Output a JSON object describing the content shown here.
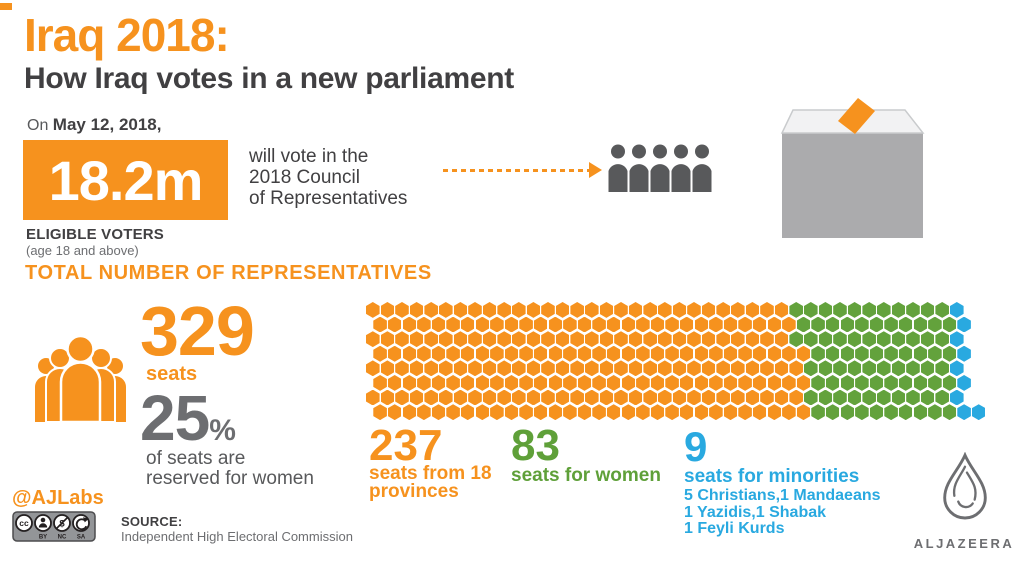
{
  "title": {
    "line1": "Iraq 2018:",
    "line2": "How Iraq votes in a new parliament"
  },
  "voters": {
    "date_prefix": "On",
    "date": "May 12, 2018,",
    "count": "18.2m",
    "description_lines": [
      "will vote in the",
      "2018 Council",
      "of Representatives"
    ],
    "label": "ELIGIBLE VOTERS",
    "sublabel": "(age 18 and above)"
  },
  "representatives": {
    "heading": "TOTAL NUMBER OF REPRESENTATIVES",
    "total": "329",
    "total_label": "seats",
    "women_pct": "25",
    "pct_sign": "%",
    "women_note_lines": [
      "of seats are",
      "reserved for women"
    ]
  },
  "chart_data": {
    "type": "hex-grid",
    "title": "TOTAL NUMBER OF REPRESENTATIVES",
    "total_seats": 329,
    "rows": 8,
    "women_quota_percent": 25,
    "segments": [
      {
        "name": "provinces",
        "value": 237,
        "color": "#F6921E",
        "label_big": "237",
        "label_lines": [
          "seats from 18",
          "provinces"
        ]
      },
      {
        "name": "women",
        "value": 83,
        "color": "#63A23C",
        "label_big": "83",
        "label_lines": [
          "seats for women"
        ]
      },
      {
        "name": "minorities",
        "value": 9,
        "color": "#29A9E0",
        "label_big": "9",
        "label_lines": [
          "seats for minorities"
        ],
        "detail_lines": [
          "5 Christians,1 Mandaeans",
          "1 Yazidis,1 Shabak",
          "1 Feyli Kurds"
        ]
      }
    ]
  },
  "footer": {
    "handle": "@AJLabs",
    "cc_labels": [
      "BY",
      "NC",
      "SA"
    ],
    "source_label": "SOURCE:",
    "source_name": "Independent High Electoral Commission",
    "brand": "ALJAZEERA"
  },
  "colors": {
    "orange": "#F6921E",
    "green": "#63A23C",
    "blue": "#29A9E0",
    "dark_text": "#414042",
    "gray_text": "#6D6E71",
    "icon_gray": "#58595B",
    "box_front": "#ABABAD",
    "box_top": "#F2F2F3"
  }
}
